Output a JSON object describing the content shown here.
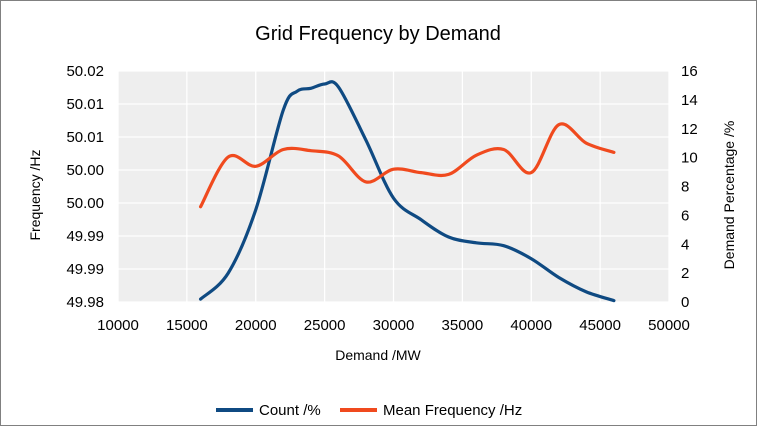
{
  "chart_data": {
    "type": "line",
    "title": "Grid Frequency by Demand",
    "xlabel": "Demand /MW",
    "ylabel_left": "Frequency /Hz",
    "ylabel_right": "Demand Percentage /%",
    "xlim": [
      10000,
      50000
    ],
    "x_ticks": [
      "10000",
      "15000",
      "20000",
      "25000",
      "30000",
      "35000",
      "40000",
      "45000",
      "50000"
    ],
    "ylim_left": [
      49.98,
      50.02
    ],
    "y_ticks_left": [
      "49.98",
      "49.99",
      "49.99",
      "50.00",
      "50.00",
      "50.01",
      "50.01",
      "50.02"
    ],
    "ylim_right": [
      0,
      16
    ],
    "y_ticks_right": [
      "0",
      "2",
      "4",
      "6",
      "8",
      "10",
      "12",
      "14",
      "16"
    ],
    "grid": true,
    "legend_position": "bottom",
    "colors": {
      "count": "#0f4a82",
      "mean": "#f04a1e",
      "plot_bg": "#eeeeee",
      "border": "#808080"
    },
    "series": [
      {
        "name": "Count /%",
        "axis": "right",
        "x": [
          16000,
          18000,
          20000,
          22000,
          23000,
          24000,
          25000,
          26000,
          28000,
          30000,
          32000,
          34000,
          36000,
          38000,
          40000,
          42000,
          44000,
          46000
        ],
        "y": [
          0.2,
          2.0,
          6.4,
          13.3,
          14.6,
          14.8,
          15.1,
          14.9,
          11.2,
          7.2,
          5.7,
          4.5,
          4.1,
          3.9,
          3.0,
          1.7,
          0.7,
          0.1
        ]
      },
      {
        "name": "Mean Frequency /Hz",
        "axis": "left",
        "x": [
          16000,
          18000,
          20000,
          22000,
          24000,
          26000,
          28000,
          30000,
          32000,
          34000,
          36000,
          38000,
          40000,
          42000,
          44000,
          46000
        ],
        "y": [
          49.9965,
          50.0051,
          50.0035,
          50.0064,
          50.0062,
          50.0053,
          50.0008,
          50.003,
          50.0024,
          50.0021,
          50.0054,
          50.0064,
          50.0024,
          50.0107,
          50.0075,
          50.0059
        ]
      }
    ]
  }
}
